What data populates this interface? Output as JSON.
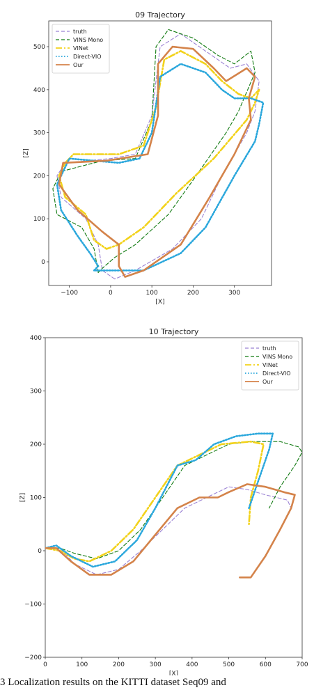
{
  "caption": "3    Localization results on the KITTI dataset Seq09 and",
  "colors": {
    "truth": "#9b82d4",
    "vins": "#117a11",
    "vinet": "#f2d21b",
    "direct": "#2aa7dc",
    "our": "#d4834a"
  },
  "chart_data": [
    {
      "type": "line",
      "title": "09 Trajectory",
      "xlabel": "[X]",
      "ylabel": "[Z]",
      "xlim": [
        -150,
        390
      ],
      "ylim": [
        -55,
        560
      ],
      "xticks": [
        -100,
        0,
        100,
        200,
        300
      ],
      "yticks": [
        0,
        100,
        200,
        300,
        400,
        500
      ],
      "legend": "top-left",
      "series": [
        {
          "name": "truth",
          "style": "dashed",
          "color": "truth",
          "points": [
            [
              10,
              -40
            ],
            [
              -20,
              -20
            ],
            [
              -30,
              40
            ],
            [
              -60,
              100
            ],
            [
              -120,
              150
            ],
            [
              -130,
              200
            ],
            [
              -110,
              230
            ],
            [
              0,
              240
            ],
            [
              60,
              250
            ],
            [
              100,
              340
            ],
            [
              120,
              500
            ],
            [
              170,
              530
            ],
            [
              230,
              490
            ],
            [
              290,
              450
            ],
            [
              330,
              460
            ],
            [
              360,
              420
            ],
            [
              350,
              350
            ],
            [
              330,
              300
            ],
            [
              270,
              200
            ],
            [
              220,
              100
            ],
            [
              150,
              30
            ],
            [
              60,
              -20
            ],
            [
              10,
              -40
            ]
          ]
        },
        {
          "name": "VINS Mono",
          "style": "dashed",
          "color": "vins",
          "points": [
            [
              -30,
              -25
            ],
            [
              -40,
              30
            ],
            [
              -70,
              80
            ],
            [
              -130,
              110
            ],
            [
              -140,
              170
            ],
            [
              -120,
              210
            ],
            [
              -20,
              235
            ],
            [
              60,
              240
            ],
            [
              100,
              330
            ],
            [
              110,
              500
            ],
            [
              140,
              540
            ],
            [
              200,
              520
            ],
            [
              260,
              480
            ],
            [
              300,
              460
            ],
            [
              340,
              490
            ],
            [
              350,
              440
            ],
            [
              310,
              350
            ],
            [
              280,
              300
            ],
            [
              200,
              190
            ],
            [
              140,
              110
            ],
            [
              60,
              40
            ],
            [
              10,
              10
            ],
            [
              -20,
              -15
            ],
            [
              -30,
              -25
            ]
          ]
        },
        {
          "name": "VINet",
          "style": "dashdot",
          "color": "vinet",
          "points": [
            [
              -110,
              230
            ],
            [
              -90,
              250
            ],
            [
              20,
              250
            ],
            [
              80,
              270
            ],
            [
              110,
              360
            ],
            [
              130,
              470
            ],
            [
              170,
              490
            ],
            [
              230,
              460
            ],
            [
              270,
              420
            ],
            [
              310,
              390
            ],
            [
              340,
              380
            ],
            [
              360,
              400
            ],
            [
              350,
              370
            ],
            [
              330,
              330
            ],
            [
              250,
              240
            ],
            [
              160,
              160
            ],
            [
              80,
              80
            ],
            [
              20,
              40
            ],
            [
              -10,
              30
            ],
            [
              -40,
              50
            ],
            [
              -60,
              110
            ],
            [
              -110,
              150
            ],
            [
              -125,
              200
            ],
            [
              -110,
              230
            ]
          ]
        },
        {
          "name": "Direct-VIO",
          "style": "dotted",
          "color": "direct",
          "points": [
            [
              -40,
              -20
            ],
            [
              -30,
              -10
            ],
            [
              -50,
              20
            ],
            [
              -80,
              60
            ],
            [
              -120,
              120
            ],
            [
              -130,
              180
            ],
            [
              -100,
              240
            ],
            [
              20,
              230
            ],
            [
              70,
              240
            ],
            [
              100,
              300
            ],
            [
              120,
              430
            ],
            [
              170,
              460
            ],
            [
              230,
              440
            ],
            [
              270,
              400
            ],
            [
              300,
              380
            ],
            [
              340,
              380
            ],
            [
              370,
              370
            ],
            [
              360,
              320
            ],
            [
              350,
              280
            ],
            [
              300,
              200
            ],
            [
              230,
              80
            ],
            [
              170,
              20
            ],
            [
              80,
              -20
            ],
            [
              0,
              -20
            ],
            [
              -40,
              -20
            ]
          ]
        },
        {
          "name": "Our",
          "style": "solid",
          "color": "our",
          "points": [
            [
              35,
              -35
            ],
            [
              20,
              -10
            ],
            [
              20,
              40
            ],
            [
              -20,
              70
            ],
            [
              -80,
              120
            ],
            [
              -125,
              180
            ],
            [
              -115,
              230
            ],
            [
              -10,
              235
            ],
            [
              90,
              250
            ],
            [
              115,
              340
            ],
            [
              115,
              460
            ],
            [
              150,
              500
            ],
            [
              200,
              495
            ],
            [
              250,
              450
            ],
            [
              280,
              420
            ],
            [
              330,
              450
            ],
            [
              350,
              430
            ],
            [
              335,
              380
            ],
            [
              340,
              330
            ],
            [
              300,
              250
            ],
            [
              240,
              150
            ],
            [
              170,
              40
            ],
            [
              80,
              -20
            ],
            [
              35,
              -35
            ]
          ]
        }
      ]
    },
    {
      "type": "line",
      "title": "10 Trajectory",
      "xlabel": "[X]",
      "ylabel": "[Z]",
      "xlim": [
        0,
        700
      ],
      "ylim": [
        -200,
        400
      ],
      "xticks": [
        0,
        100,
        200,
        300,
        400,
        500,
        600,
        700
      ],
      "yticks": [
        -200,
        -100,
        0,
        100,
        200,
        300,
        400
      ],
      "legend": "top-right",
      "series": [
        {
          "name": "truth",
          "style": "dashed",
          "color": "truth",
          "points": [
            [
              0,
              5
            ],
            [
              40,
              5
            ],
            [
              80,
              -25
            ],
            [
              140,
              -45
            ],
            [
              200,
              -35
            ],
            [
              260,
              0
            ],
            [
              320,
              40
            ],
            [
              380,
              80
            ],
            [
              440,
              100
            ],
            [
              500,
              120
            ],
            [
              550,
              115
            ],
            [
              600,
              105
            ],
            [
              660,
              95
            ],
            [
              670,
              80
            ],
            [
              640,
              40
            ],
            [
              600,
              -10
            ],
            [
              560,
              -50
            ],
            [
              530,
              -50
            ]
          ]
        },
        {
          "name": "VINS Mono",
          "style": "dashed",
          "color": "vins",
          "points": [
            [
              0,
              5
            ],
            [
              40,
              5
            ],
            [
              80,
              -5
            ],
            [
              140,
              -15
            ],
            [
              200,
              0
            ],
            [
              260,
              40
            ],
            [
              320,
              100
            ],
            [
              380,
              160
            ],
            [
              440,
              180
            ],
            [
              500,
              200
            ],
            [
              560,
              205
            ],
            [
              640,
              205
            ],
            [
              690,
              195
            ],
            [
              700,
              185
            ],
            [
              680,
              160
            ],
            [
              640,
              120
            ],
            [
              610,
              80
            ]
          ]
        },
        {
          "name": "VINet",
          "style": "dashdot",
          "color": "vinet",
          "points": [
            [
              0,
              5
            ],
            [
              40,
              0
            ],
            [
              80,
              -15
            ],
            [
              120,
              -20
            ],
            [
              180,
              0
            ],
            [
              240,
              40
            ],
            [
              300,
              100
            ],
            [
              360,
              160
            ],
            [
              420,
              180
            ],
            [
              480,
              200
            ],
            [
              560,
              205
            ],
            [
              595,
              200
            ],
            [
              580,
              150
            ],
            [
              560,
              100
            ],
            [
              555,
              50
            ]
          ]
        },
        {
          "name": "Direct-VIO",
          "style": "dotted",
          "color": "direct",
          "points": [
            [
              0,
              5
            ],
            [
              30,
              10
            ],
            [
              70,
              -10
            ],
            [
              130,
              -30
            ],
            [
              190,
              -20
            ],
            [
              250,
              20
            ],
            [
              300,
              80
            ],
            [
              360,
              160
            ],
            [
              410,
              170
            ],
            [
              460,
              200
            ],
            [
              520,
              215
            ],
            [
              580,
              220
            ],
            [
              620,
              220
            ],
            [
              610,
              190
            ],
            [
              580,
              130
            ],
            [
              555,
              80
            ]
          ]
        },
        {
          "name": "Our",
          "style": "solid",
          "color": "our",
          "points": [
            [
              0,
              5
            ],
            [
              30,
              5
            ],
            [
              70,
              -20
            ],
            [
              120,
              -45
            ],
            [
              180,
              -45
            ],
            [
              240,
              -20
            ],
            [
              300,
              30
            ],
            [
              360,
              80
            ],
            [
              420,
              100
            ],
            [
              470,
              100
            ],
            [
              500,
              110
            ],
            [
              550,
              125
            ],
            [
              600,
              120
            ],
            [
              650,
              110
            ],
            [
              680,
              105
            ],
            [
              670,
              80
            ],
            [
              640,
              40
            ],
            [
              600,
              -10
            ],
            [
              560,
              -50
            ],
            [
              530,
              -50
            ]
          ]
        }
      ]
    }
  ]
}
